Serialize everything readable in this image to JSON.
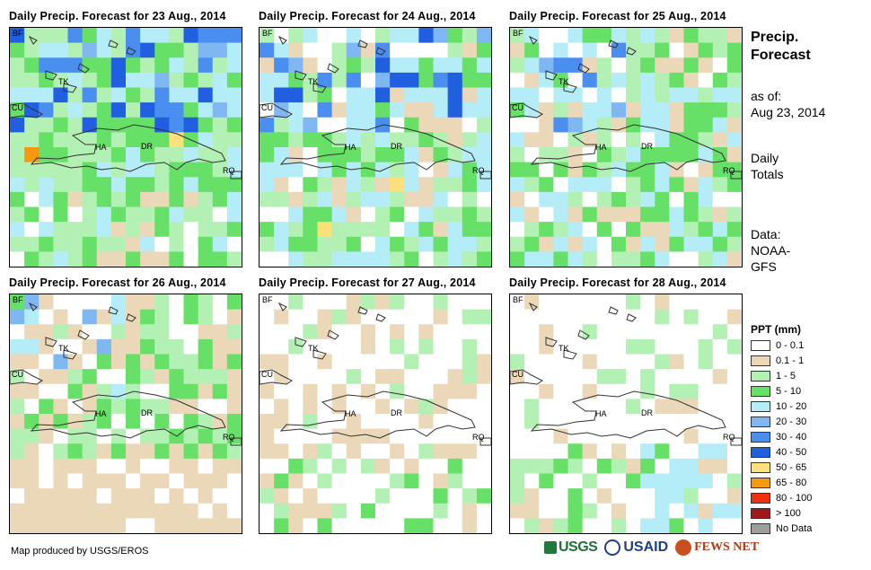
{
  "panels": [
    {
      "title": "Daily Precip. Forecast for 23 Aug., 2014",
      "pattern": "wet"
    },
    {
      "title": "Daily Precip. Forecast for 24 Aug., 2014",
      "pattern": "mid"
    },
    {
      "title": "Daily Precip. Forecast for 25 Aug., 2014",
      "pattern": "mid2"
    },
    {
      "title": "Daily Precip. Forecast for 26 Aug., 2014",
      "pattern": "dry1"
    },
    {
      "title": "Daily Precip. Forecast for 27 Aug., 2014",
      "pattern": "dry2"
    },
    {
      "title": "Daily Precip. Forecast for 28 Aug., 2014",
      "pattern": "dry3"
    }
  ],
  "map_labels": {
    "bf": "BF",
    "tk": "TK",
    "cu": "CU",
    "ha": "HA",
    "dr": "DR",
    "rq": "RQ"
  },
  "sidebar": {
    "title_line1": "Precip.",
    "title_line2": "Forecast",
    "asof_line1": "as of:",
    "asof_line2": "Aug 23, 2014",
    "daily_line1": "Daily",
    "daily_line2": "Totals",
    "data_line1": "Data:",
    "data_line2": "NOAA-",
    "data_line3": "GFS"
  },
  "legend": {
    "title": "PPT (mm)",
    "classes": [
      {
        "label": "0 - 0.1",
        "color": "#ffffff"
      },
      {
        "label": "0.1 - 1",
        "color": "#ebd8b8"
      },
      {
        "label": "1 - 5",
        "color": "#b3f0b3"
      },
      {
        "label": "5 - 10",
        "color": "#66e066"
      },
      {
        "label": "10 - 20",
        "color": "#b4ecf7"
      },
      {
        "label": "20 - 30",
        "color": "#7fb7f2"
      },
      {
        "label": "30 - 40",
        "color": "#4a8ff0"
      },
      {
        "label": "40 - 50",
        "color": "#1f5fe0"
      },
      {
        "label": "50 - 65",
        "color": "#fde07a"
      },
      {
        "label": "65 - 80",
        "color": "#f59a10"
      },
      {
        "label": "80 - 100",
        "color": "#f03010"
      },
      {
        "label": "> 100",
        "color": "#a01818"
      },
      {
        "label": "No Data",
        "color": "#9e9e9e"
      }
    ]
  },
  "footer": {
    "credit": "Map produced by USGS/EROS",
    "logo_usgs": "USGS",
    "logo_usaid": "USAID",
    "logo_fews": "FEWS NET"
  }
}
